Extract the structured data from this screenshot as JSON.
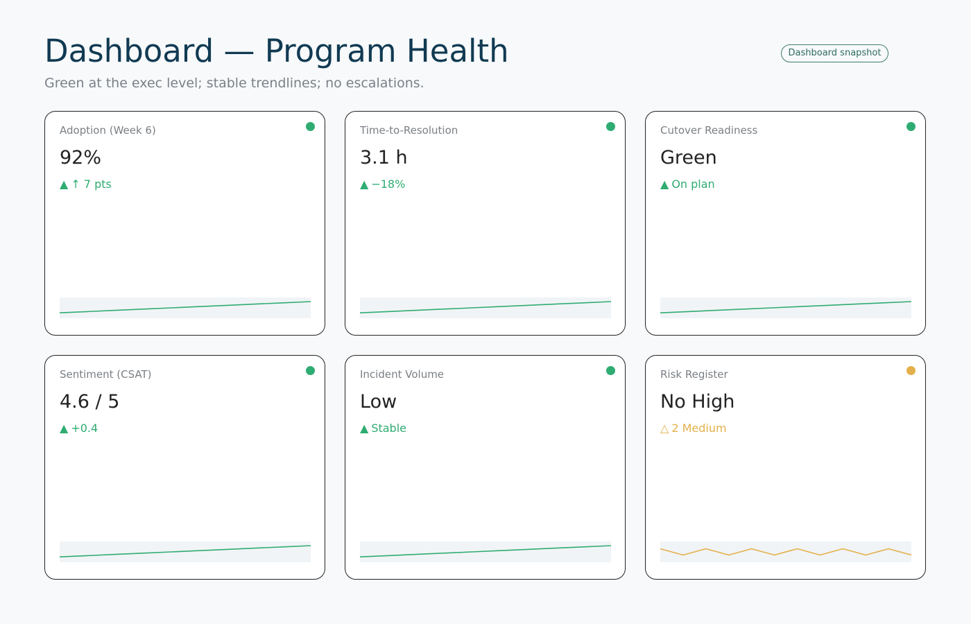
{
  "header": {
    "title": "Dashboard — Program Health",
    "subtitle": "Green at the exec level; stable trendlines; no escalations.",
    "badge": "Dashboard snapshot"
  },
  "colors": {
    "good": "#2fac72",
    "warn": "#e3b04b",
    "spark_bg": "#f1f4f6"
  },
  "cards": [
    {
      "label": "Adoption (Week 6)",
      "value": "92%",
      "delta_icon": "▲",
      "delta": "↑ 7 pts",
      "status": "good",
      "trend": [
        0.1,
        0.2,
        0.3,
        0.4,
        0.5,
        0.6,
        0.7,
        0.8,
        0.9,
        1.0
      ]
    },
    {
      "label": "Time-to-Resolution",
      "value": "3.1 h",
      "delta_icon": "▲",
      "delta": "−18%",
      "status": "good",
      "trend": [
        0.1,
        0.2,
        0.3,
        0.4,
        0.5,
        0.6,
        0.7,
        0.8,
        0.9,
        1.0
      ]
    },
    {
      "label": "Cutover Readiness",
      "value": "Green",
      "delta_icon": "▲",
      "delta": "On plan",
      "status": "good",
      "trend": [
        0.1,
        0.2,
        0.3,
        0.4,
        0.5,
        0.6,
        0.7,
        0.8,
        0.9,
        1.0
      ]
    },
    {
      "label": "Sentiment (CSAT)",
      "value": "4.6 / 5",
      "delta_icon": "▲",
      "delta": "+0.4",
      "status": "good",
      "trend": [
        0.1,
        0.2,
        0.3,
        0.4,
        0.5,
        0.6,
        0.7,
        0.8,
        0.9,
        1.0
      ]
    },
    {
      "label": "Incident Volume",
      "value": "Low",
      "delta_icon": "▲",
      "delta": "Stable",
      "status": "good",
      "trend": [
        0.1,
        0.2,
        0.3,
        0.4,
        0.5,
        0.6,
        0.7,
        0.8,
        0.9,
        1.0
      ]
    },
    {
      "label": "Risk Register",
      "value": "No High",
      "delta_icon": "△",
      "delta": "2 Medium",
      "status": "warn",
      "trend": [
        0.75,
        0.25,
        0.75,
        0.25,
        0.75,
        0.25,
        0.75,
        0.25,
        0.75,
        0.25,
        0.75,
        0.25
      ]
    }
  ]
}
